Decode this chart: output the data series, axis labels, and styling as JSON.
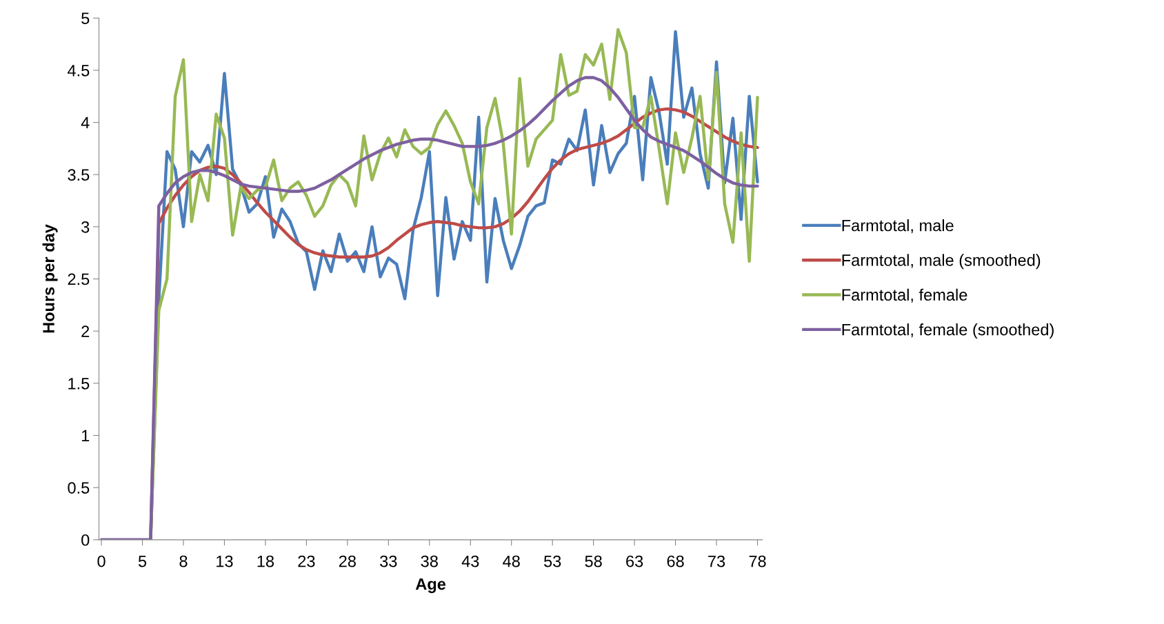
{
  "chart_data": {
    "type": "line",
    "xlabel": "Age",
    "ylabel": "Hours per day",
    "categories": [
      "0",
      null,
      null,
      null,
      null,
      "5",
      null,
      null,
      null,
      null,
      "8",
      null,
      null,
      null,
      null,
      "13",
      null,
      null,
      null,
      null,
      "18",
      null,
      null,
      null,
      null,
      "23",
      null,
      null,
      null,
      null,
      "28",
      null,
      null,
      null,
      null,
      "33",
      null,
      null,
      null,
      null,
      "38",
      null,
      null,
      null,
      null,
      "43",
      null,
      null,
      null,
      null,
      "48",
      null,
      null,
      null,
      null,
      "53",
      null,
      null,
      null,
      null,
      "58",
      null,
      null,
      null,
      null,
      "63",
      null,
      null,
      null,
      null,
      "68",
      null,
      null,
      null,
      null,
      "73",
      null,
      null,
      null,
      null,
      "78"
    ],
    "series": [
      {
        "name": "Farmtotal, male",
        "color": "#4a7ebb",
        "values": [
          null,
          null,
          null,
          null,
          null,
          null,
          0,
          2.3,
          3.72,
          3.55,
          3.0,
          3.72,
          3.62,
          3.78,
          3.5,
          4.47,
          3.55,
          3.4,
          3.14,
          3.22,
          3.48,
          2.9,
          3.17,
          3.05,
          2.84,
          2.76,
          2.4,
          2.77,
          2.57,
          2.93,
          2.67,
          2.76,
          2.57,
          3.0,
          2.52,
          2.7,
          2.64,
          2.31,
          2.97,
          3.28,
          3.72,
          2.34,
          3.28,
          2.69,
          3.05,
          2.87,
          4.05,
          2.47,
          3.27,
          2.87,
          2.6,
          2.82,
          3.1,
          3.2,
          3.23,
          3.64,
          3.6,
          3.84,
          3.73,
          4.12,
          3.4,
          3.97,
          3.52,
          3.7,
          3.8,
          4.25,
          3.45,
          4.43,
          4.1,
          3.6,
          4.87,
          4.05,
          4.33,
          3.7,
          3.37,
          4.58,
          3.42,
          4.04,
          3.07,
          4.25,
          3.43
        ]
      },
      {
        "name": "Farmtotal, male (smoothed)",
        "color": "#be4b48",
        "values": [
          null,
          null,
          null,
          null,
          null,
          null,
          0,
          3.03,
          3.18,
          3.3,
          3.4,
          3.48,
          3.54,
          3.57,
          3.58,
          3.56,
          3.5,
          3.42,
          3.33,
          3.23,
          3.14,
          3.06,
          2.98,
          2.9,
          2.83,
          2.78,
          2.75,
          2.73,
          2.72,
          2.71,
          2.71,
          2.71,
          2.71,
          2.72,
          2.75,
          2.8,
          2.87,
          2.93,
          2.99,
          3.02,
          3.04,
          3.05,
          3.04,
          3.03,
          3.01,
          3.0,
          2.99,
          2.99,
          3.0,
          3.03,
          3.08,
          3.15,
          3.24,
          3.35,
          3.46,
          3.56,
          3.64,
          3.7,
          3.74,
          3.76,
          3.78,
          3.8,
          3.83,
          3.87,
          3.93,
          3.99,
          4.05,
          4.09,
          4.12,
          4.13,
          4.12,
          4.1,
          4.06,
          4.01,
          3.96,
          3.91,
          3.86,
          3.82,
          3.79,
          3.77,
          3.76
        ]
      },
      {
        "name": "Farmtotal, female",
        "color": "#98b954",
        "values": [
          null,
          null,
          null,
          null,
          null,
          null,
          0,
          2.2,
          2.5,
          4.25,
          4.6,
          3.05,
          3.5,
          3.25,
          4.08,
          3.85,
          2.92,
          3.38,
          3.27,
          3.35,
          3.38,
          3.64,
          3.25,
          3.37,
          3.43,
          3.3,
          3.1,
          3.2,
          3.4,
          3.5,
          3.42,
          3.2,
          3.87,
          3.45,
          3.7,
          3.85,
          3.67,
          3.93,
          3.77,
          3.7,
          3.76,
          3.98,
          4.11,
          3.97,
          3.8,
          3.43,
          3.22,
          3.95,
          4.23,
          3.8,
          2.93,
          4.42,
          3.58,
          3.84,
          3.93,
          4.02,
          4.65,
          4.26,
          4.3,
          4.65,
          4.55,
          4.75,
          4.22,
          4.89,
          4.67,
          3.95,
          3.95,
          4.25,
          3.75,
          3.22,
          3.9,
          3.52,
          3.85,
          4.25,
          3.45,
          4.48,
          3.22,
          2.85,
          3.9,
          2.67,
          4.24
        ]
      },
      {
        "name": "Farmtotal, female (smoothed)",
        "color": "#7d60a0",
        "values": [
          0,
          0,
          0,
          0,
          0,
          0,
          0,
          3.2,
          3.32,
          3.42,
          3.48,
          3.52,
          3.54,
          3.54,
          3.52,
          3.49,
          3.45,
          3.41,
          3.39,
          3.38,
          3.37,
          3.36,
          3.35,
          3.34,
          3.34,
          3.35,
          3.37,
          3.41,
          3.45,
          3.5,
          3.55,
          3.6,
          3.65,
          3.69,
          3.73,
          3.76,
          3.79,
          3.81,
          3.83,
          3.84,
          3.84,
          3.83,
          3.81,
          3.79,
          3.77,
          3.77,
          3.77,
          3.78,
          3.8,
          3.83,
          3.87,
          3.92,
          3.98,
          4.05,
          4.13,
          4.21,
          4.28,
          4.35,
          4.4,
          4.43,
          4.43,
          4.4,
          4.33,
          4.24,
          4.13,
          4.02,
          3.93,
          3.86,
          3.82,
          3.79,
          3.76,
          3.73,
          3.68,
          3.63,
          3.57,
          3.51,
          3.46,
          3.42,
          3.4,
          3.39,
          3.39
        ]
      }
    ],
    "ylim": [
      0,
      5
    ],
    "yticks": [
      0,
      0.5,
      1,
      1.5,
      2,
      2.5,
      3,
      3.5,
      4,
      4.5,
      5
    ],
    "grid": false,
    "legend": "right",
    "marker": "none",
    "line_style": "solid"
  }
}
